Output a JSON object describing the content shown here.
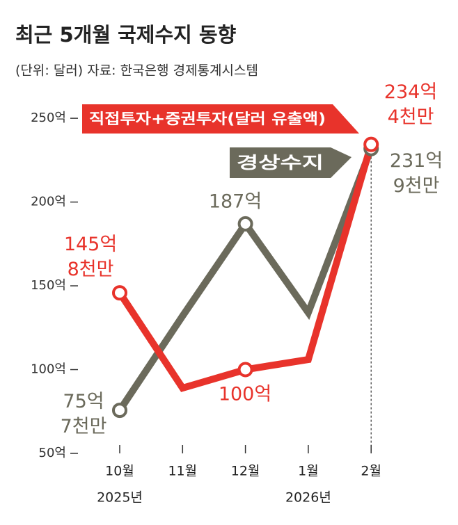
{
  "chart_data": {
    "type": "line",
    "title": "최근 5개월 국제수지 동향",
    "subtitle": "(단위: 달러) 자료: 한국은행 경제통계시스템",
    "categories": [
      "10월",
      "11월",
      "12월",
      "1월",
      "2월"
    ],
    "category_years": [
      "2025년",
      null,
      null,
      "2026년",
      null
    ],
    "series": [
      {
        "name": "경상수지",
        "color": "#6b6a5b",
        "values": [
          75.7,
          132,
          187,
          134,
          231.9
        ],
        "value_labels": [
          "75억 7천만",
          null,
          "187억",
          null,
          "231억 9천만"
        ]
      },
      {
        "name": "직접투자+증권투자(달러 유출액)",
        "color": "#e8332b",
        "values": [
          145.8,
          89,
          100,
          106,
          234.4
        ],
        "value_labels": [
          "145억 8천만",
          null,
          "100억",
          null,
          "234억 4천만"
        ]
      }
    ],
    "ylim": [
      50,
      260
    ],
    "yticks": [
      {
        "value": 50,
        "label": "50억"
      },
      {
        "value": 100,
        "label": "100억"
      },
      {
        "value": 150,
        "label": "150억"
      },
      {
        "value": 200,
        "label": "200억"
      },
      {
        "value": 250,
        "label": "250억"
      }
    ]
  }
}
